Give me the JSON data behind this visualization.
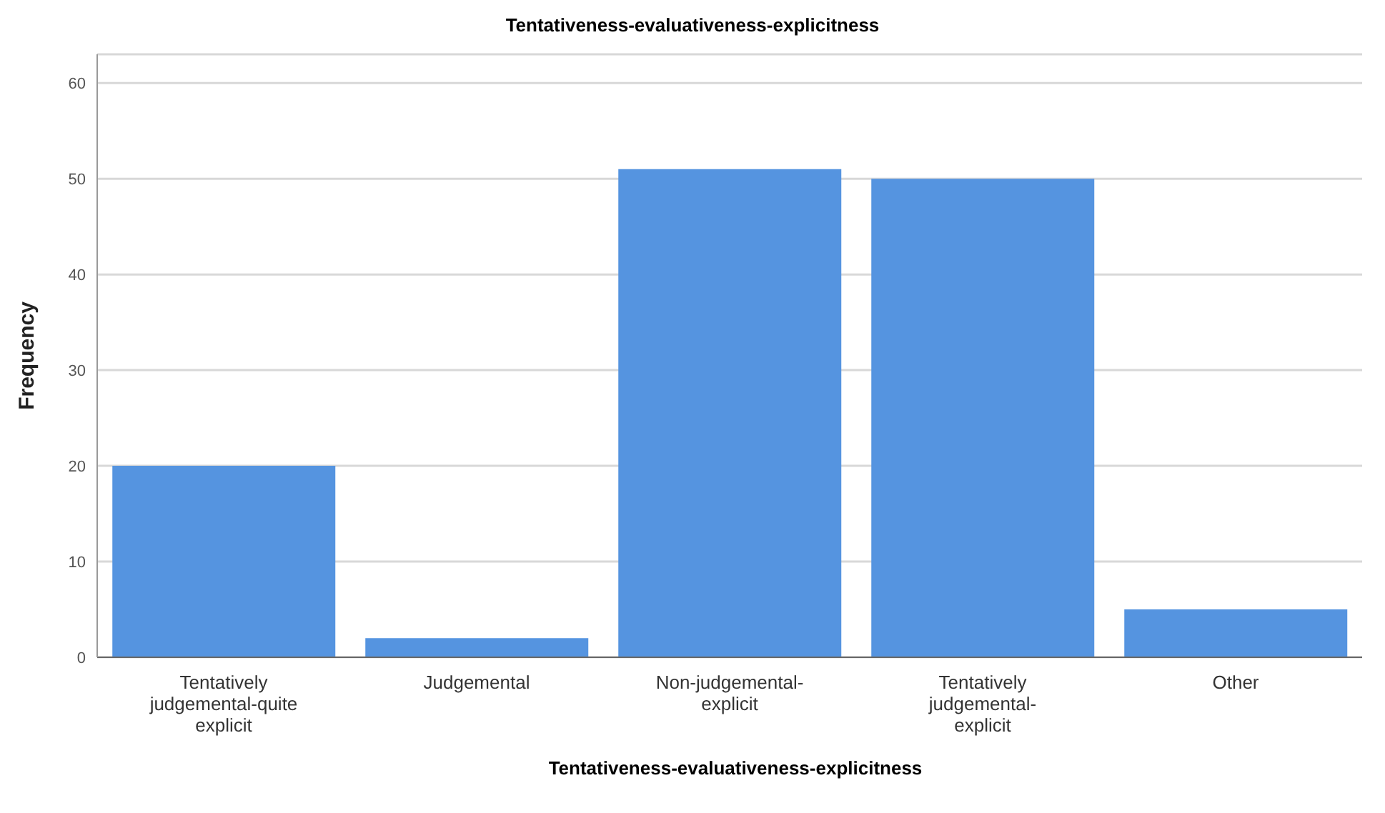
{
  "chart_data": {
    "type": "bar",
    "title": "Tentativeness-evaluativeness-explicitness",
    "xlabel": "Tentativeness-evaluativeness-explicitness",
    "ylabel": "Frequency",
    "categories": [
      "Tentatively judgemental-quite explicit",
      "Judgemental",
      "Non-judgemental-explicit",
      "Tentatively judgemental-explicit",
      "Other"
    ],
    "values": [
      20,
      2,
      51,
      50,
      5
    ],
    "color": "#5594e0",
    "ylim": [
      0,
      63
    ],
    "yticks": [
      0,
      10,
      20,
      30,
      40,
      50,
      60
    ],
    "grid": "y",
    "legend": false
  }
}
